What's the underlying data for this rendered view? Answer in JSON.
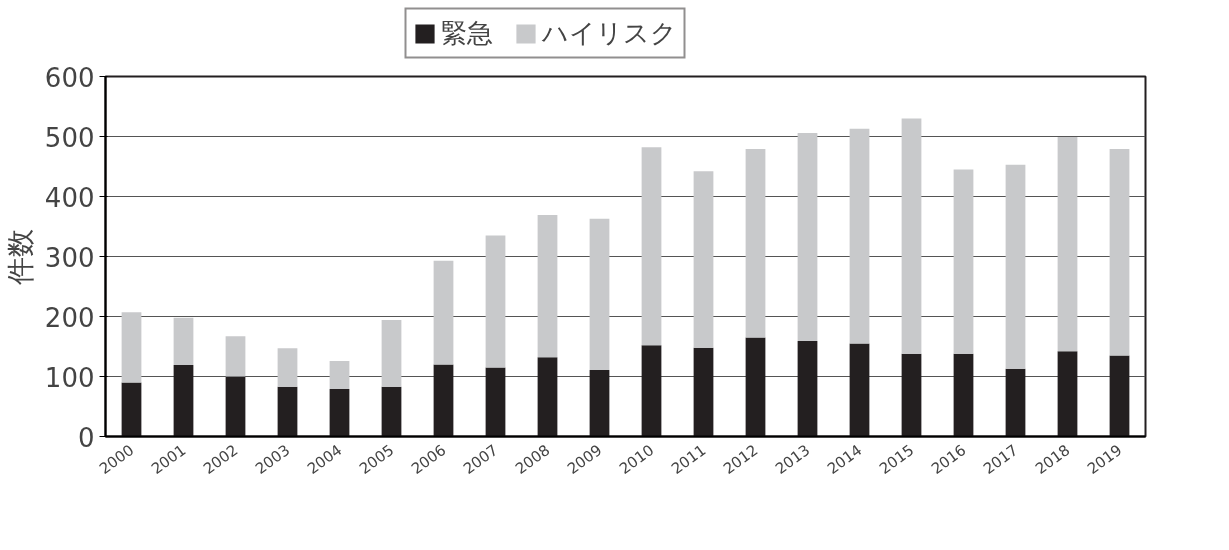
{
  "chart_data": {
    "type": "bar",
    "stacked": true,
    "ylabel": "件数",
    "categories": [
      "2000",
      "2001",
      "2002",
      "2003",
      "2004",
      "2005",
      "2006",
      "2007",
      "2008",
      "2009",
      "2010",
      "2011",
      "2012",
      "2013",
      "2014",
      "2015",
      "2016",
      "2017",
      "2018",
      "2019"
    ],
    "series": [
      {
        "name": "緊急",
        "color": "#231f20",
        "values": [
          90,
          119,
          100,
          83,
          79,
          83,
          120,
          115,
          132,
          111,
          152,
          148,
          165,
          159,
          155,
          138,
          138,
          113,
          142,
          135
        ]
      },
      {
        "name": "ハイリスク",
        "color": "#c8c9cb",
        "values": [
          117,
          79,
          67,
          64,
          47,
          111,
          173,
          220,
          237,
          252,
          330,
          294,
          314,
          347,
          358,
          392,
          307,
          340,
          357,
          344
        ]
      }
    ],
    "ylim": [
      0,
      600
    ],
    "yticks": [
      0,
      100,
      200,
      300,
      400,
      500,
      600
    ],
    "grid": "y",
    "legend": "top"
  }
}
